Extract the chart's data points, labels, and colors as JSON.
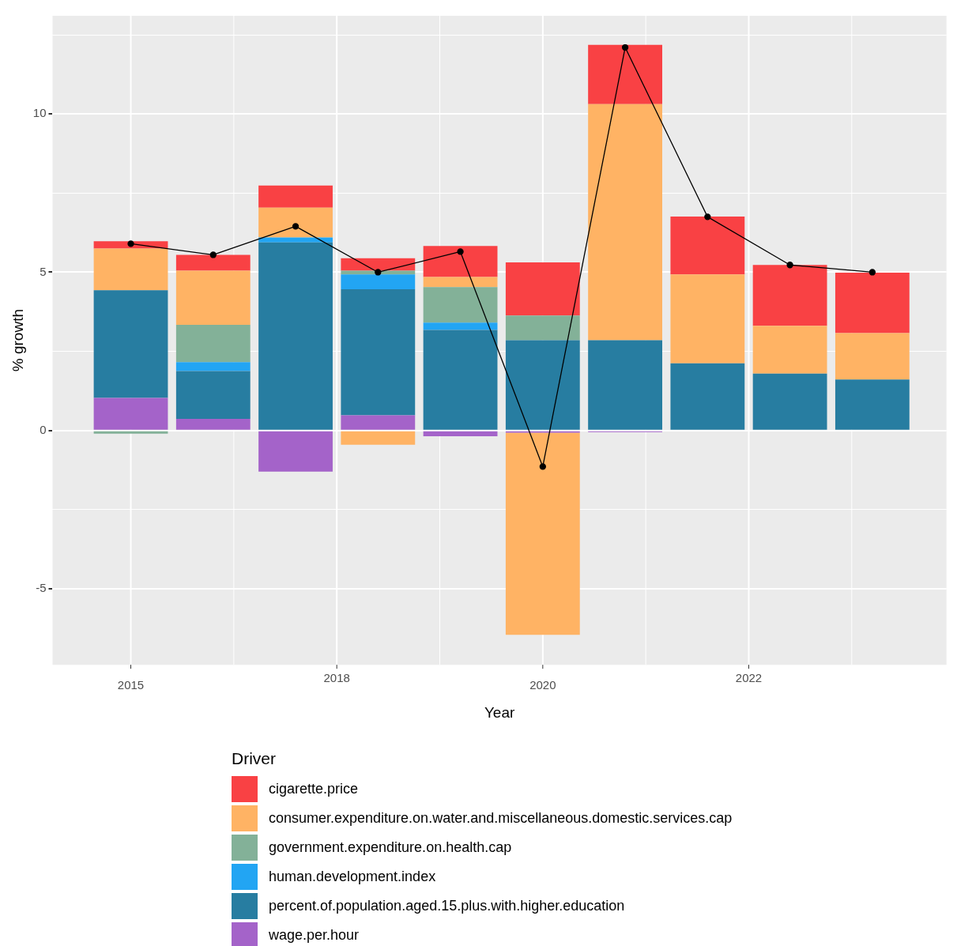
{
  "chart_data": {
    "type": "bar",
    "stacked": true,
    "xlabel": "Year",
    "ylabel": "% growth",
    "legend_title": "Driver",
    "legend": "bottom",
    "grid": true,
    "marker": "circle",
    "line_style": "solid",
    "categories": [
      "2015",
      null,
      null,
      null,
      null,
      "2020",
      null,
      null,
      null,
      null
    ],
    "annotations": [
      "2018",
      "2022"
    ],
    "ylim": [
      -7.4,
      13.1
    ],
    "yticks": [
      -5,
      {
        "value": -2.5,
        "label": null
      },
      0,
      {
        "value": 2.5,
        "label": null
      },
      5,
      {
        "value": 7.5,
        "label": null
      },
      10,
      {
        "value": 12.5,
        "label": null
      }
    ],
    "series": [
      {
        "name": "wage.per.hour",
        "color": "#a463c9",
        "values": [
          1.03,
          0.37,
          -1.3,
          0.48,
          -0.18,
          -0.07,
          -0.05,
          null,
          null,
          null
        ]
      },
      {
        "name": "percent.of.population.aged.15.plus.with.higher.education",
        "color": "#277da1",
        "values": [
          3.4,
          1.51,
          5.94,
          3.98,
          3.18,
          2.85,
          2.85,
          2.12,
          1.8,
          1.61
        ]
      },
      {
        "name": "human.development.index",
        "color": "#22a5f3",
        "values": [
          null,
          0.28,
          0.16,
          0.47,
          0.23,
          null,
          null,
          null,
          null,
          null
        ]
      },
      {
        "name": "government.expenditure.on.health.cap",
        "color": "#83b198",
        "values": [
          -0.1,
          1.18,
          null,
          0.12,
          1.12,
          0.78,
          null,
          null,
          null,
          null
        ]
      },
      {
        "name": "consumer.expenditure.on.water.and.miscellaneous.domestic.services.cap",
        "color": "#ffb364",
        "values": [
          1.32,
          1.71,
          0.94,
          -0.45,
          0.32,
          -6.38,
          7.46,
          2.81,
          1.51,
          1.47
        ]
      },
      {
        "name": "cigarette.price",
        "color": "#f94144",
        "values": [
          0.23,
          0.5,
          0.7,
          0.39,
          0.98,
          1.68,
          1.87,
          1.83,
          1.92,
          1.91
        ]
      },
      {
        "type": "line",
        "color": "#000000",
        "values": [
          5.9,
          5.55,
          6.45,
          5.0,
          5.65,
          -1.14,
          12.1,
          6.75,
          5.23,
          5.0
        ]
      }
    ]
  }
}
